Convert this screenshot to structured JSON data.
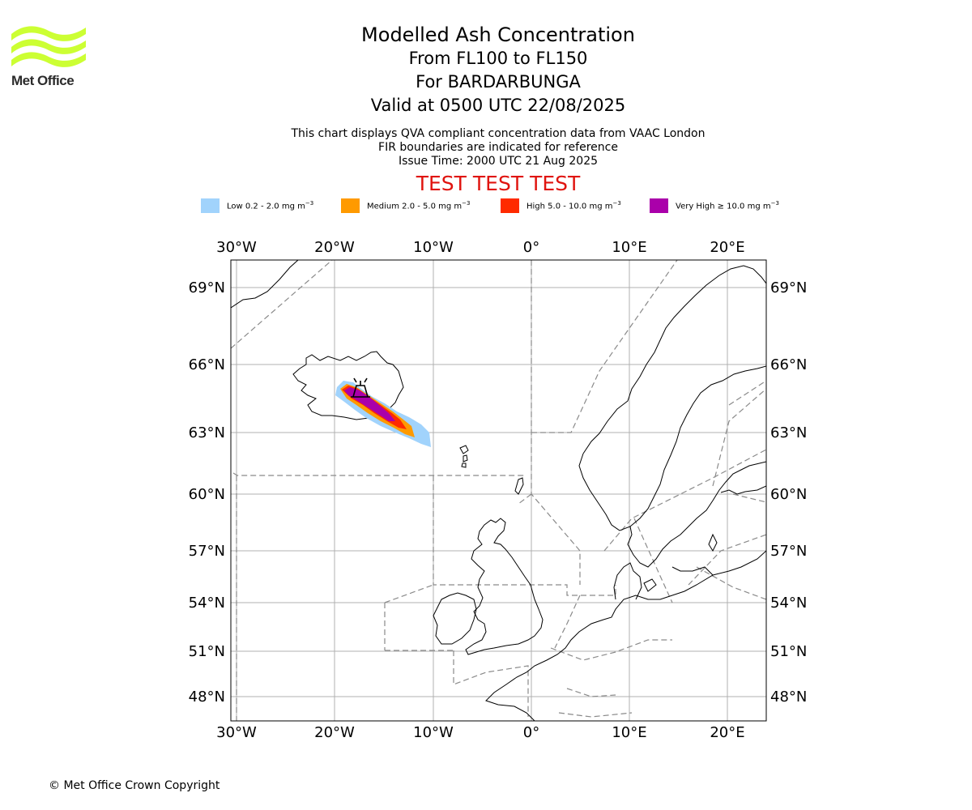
{
  "logo": {
    "name": "Met Office",
    "color": "#ccff33"
  },
  "title": {
    "main": "Modelled Ash Concentration",
    "levels": "From FL100 to FL150",
    "volcano": "For BARDARBUNGA",
    "valid": "Valid at 0500 UTC 22/08/2025"
  },
  "subtitle": {
    "line1": "This chart displays QVA compliant concentration data from VAAC London",
    "line2": "FIR boundaries are indicated for reference",
    "line3": "Issue Time: 2000 UTC 21 Aug 2025"
  },
  "test_banner": "TEST TEST TEST",
  "legend": [
    {
      "label": "Low 0.2 - 2.0 mg m",
      "color": "#a1d3fc"
    },
    {
      "label": "Medium 2.0 - 5.0 mg m",
      "color": "#ff9a00"
    },
    {
      "label": "High 5.0 - 10.0 mg m",
      "color": "#ff2a00"
    },
    {
      "label": "Very High ≥ 10.0 mg m",
      "color": "#aa00aa"
    }
  ],
  "legend_unit_exponent": "−3",
  "map": {
    "lon_ticks": [
      "30°W",
      "20°W",
      "10°W",
      "0°",
      "10°E",
      "20°E"
    ],
    "lat_ticks": [
      "69°N",
      "66°N",
      "63°N",
      "60°N",
      "57°N",
      "54°N",
      "51°N",
      "48°N"
    ]
  },
  "copyright": "© Met Office Crown Copyright"
}
